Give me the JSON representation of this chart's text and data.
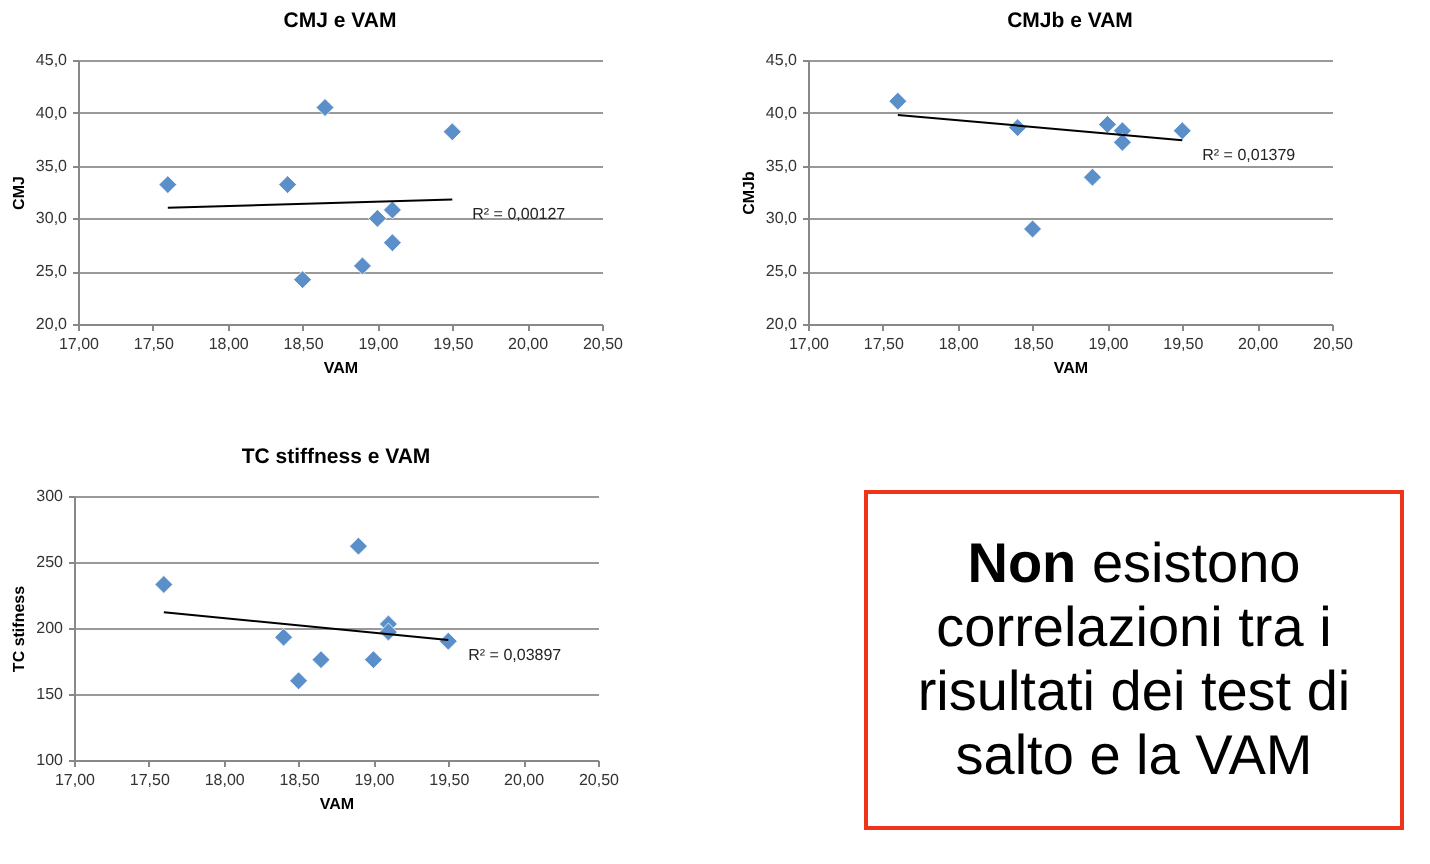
{
  "chart_data": [
    {
      "type": "scatter",
      "title": "CMJ e VAM",
      "xlabel": "VAM",
      "ylabel": "CMJ",
      "marker": "diamond",
      "grid": "y",
      "xlim": [
        17,
        20.5
      ],
      "xticks": [
        {
          "value": 17,
          "label": "17,00"
        },
        {
          "value": 17.5,
          "label": "17,50"
        },
        {
          "value": 18,
          "label": "18,00"
        },
        {
          "value": 18.5,
          "label": "18,50"
        },
        {
          "value": 19,
          "label": "19,00"
        },
        {
          "value": 19.5,
          "label": "19,50"
        },
        {
          "value": 20,
          "label": "20,00"
        },
        {
          "value": 20.5,
          "label": "20,50"
        }
      ],
      "ylim": [
        20,
        45
      ],
      "yticks": [
        {
          "value": 20,
          "label": "20,0"
        },
        {
          "value": 25,
          "label": "25,0"
        },
        {
          "value": 30,
          "label": "30,0"
        },
        {
          "value": 35,
          "label": "35,0"
        },
        {
          "value": 40,
          "label": "40,0"
        },
        {
          "value": 45,
          "label": "45,0"
        }
      ],
      "annotations": [
        "R² = 0,00127"
      ],
      "series": [
        {
          "color": "#5b8fc9",
          "x": [
            17.6,
            18.4,
            18.65,
            19.5,
            18.5,
            18.9,
            19.0,
            19.1,
            19.1
          ],
          "values": [
            33.2,
            33.2,
            40.5,
            38.2,
            24.2,
            25.5,
            30.0,
            30.8,
            27.7
          ]
        },
        {
          "type": "line",
          "marker": "none",
          "color": "#000000",
          "x": [
            17.6,
            19.5
          ],
          "values": [
            31.0,
            31.8
          ]
        }
      ]
    },
    {
      "type": "scatter",
      "title": "CMJb e VAM",
      "xlabel": "VAM",
      "ylabel": "CMJb",
      "marker": "diamond",
      "grid": "y",
      "xlim": [
        17,
        20.5
      ],
      "xticks": [
        {
          "value": 17,
          "label": "17,00"
        },
        {
          "value": 17.5,
          "label": "17,50"
        },
        {
          "value": 18,
          "label": "18,00"
        },
        {
          "value": 18.5,
          "label": "18,50"
        },
        {
          "value": 19,
          "label": "19,00"
        },
        {
          "value": 19.5,
          "label": "19,50"
        },
        {
          "value": 20,
          "label": "20,00"
        },
        {
          "value": 20.5,
          "label": "20,50"
        }
      ],
      "ylim": [
        20,
        45
      ],
      "yticks": [
        {
          "value": 20,
          "label": "20,0"
        },
        {
          "value": 25,
          "label": "25,0"
        },
        {
          "value": 30,
          "label": "30,0"
        },
        {
          "value": 35,
          "label": "35,0"
        },
        {
          "value": 40,
          "label": "40,0"
        },
        {
          "value": 45,
          "label": "45,0"
        }
      ],
      "annotations": [
        "R² = 0,01379"
      ],
      "series": [
        {
          "color": "#5b8fc9",
          "x": [
            17.6,
            18.4,
            18.5,
            18.9,
            19.0,
            19.1,
            19.1,
            19.5
          ],
          "values": [
            41.1,
            38.6,
            29.0,
            33.9,
            38.9,
            38.3,
            37.2,
            38.3
          ]
        },
        {
          "type": "line",
          "marker": "none",
          "color": "#000000",
          "x": [
            17.6,
            19.5
          ],
          "values": [
            39.8,
            37.4
          ]
        }
      ]
    },
    {
      "type": "scatter",
      "title": "TC stiffness e VAM",
      "xlabel": "VAM",
      "ylabel": "TC stifness",
      "marker": "diamond",
      "grid": "y",
      "xlim": [
        17,
        20.5
      ],
      "xticks": [
        {
          "value": 17,
          "label": "17,00"
        },
        {
          "value": 17.5,
          "label": "17,50"
        },
        {
          "value": 18,
          "label": "18,00"
        },
        {
          "value": 18.5,
          "label": "18,50"
        },
        {
          "value": 19,
          "label": "19,00"
        },
        {
          "value": 19.5,
          "label": "19,50"
        },
        {
          "value": 20,
          "label": "20,00"
        },
        {
          "value": 20.5,
          "label": "20,50"
        }
      ],
      "ylim": [
        100,
        300
      ],
      "yticks": [
        100,
        150,
        200,
        250,
        300
      ],
      "annotations": [
        "R² = 0,03897"
      ],
      "series": [
        {
          "color": "#5b8fc9",
          "x": [
            17.6,
            18.4,
            18.5,
            18.65,
            18.9,
            19.0,
            19.1,
            19.1,
            19.5
          ],
          "values": [
            233,
            193,
            160,
            176,
            262,
            176,
            203,
            197,
            190
          ]
        },
        {
          "type": "line",
          "marker": "none",
          "color": "#000000",
          "x": [
            17.6,
            19.5
          ],
          "values": [
            212,
            191
          ]
        }
      ]
    },
    {
      "type": "other",
      "annotations": [
        "Non esistono correlazioni tra i risultati dei test di salto e la VAM"
      ]
    }
  ]
}
